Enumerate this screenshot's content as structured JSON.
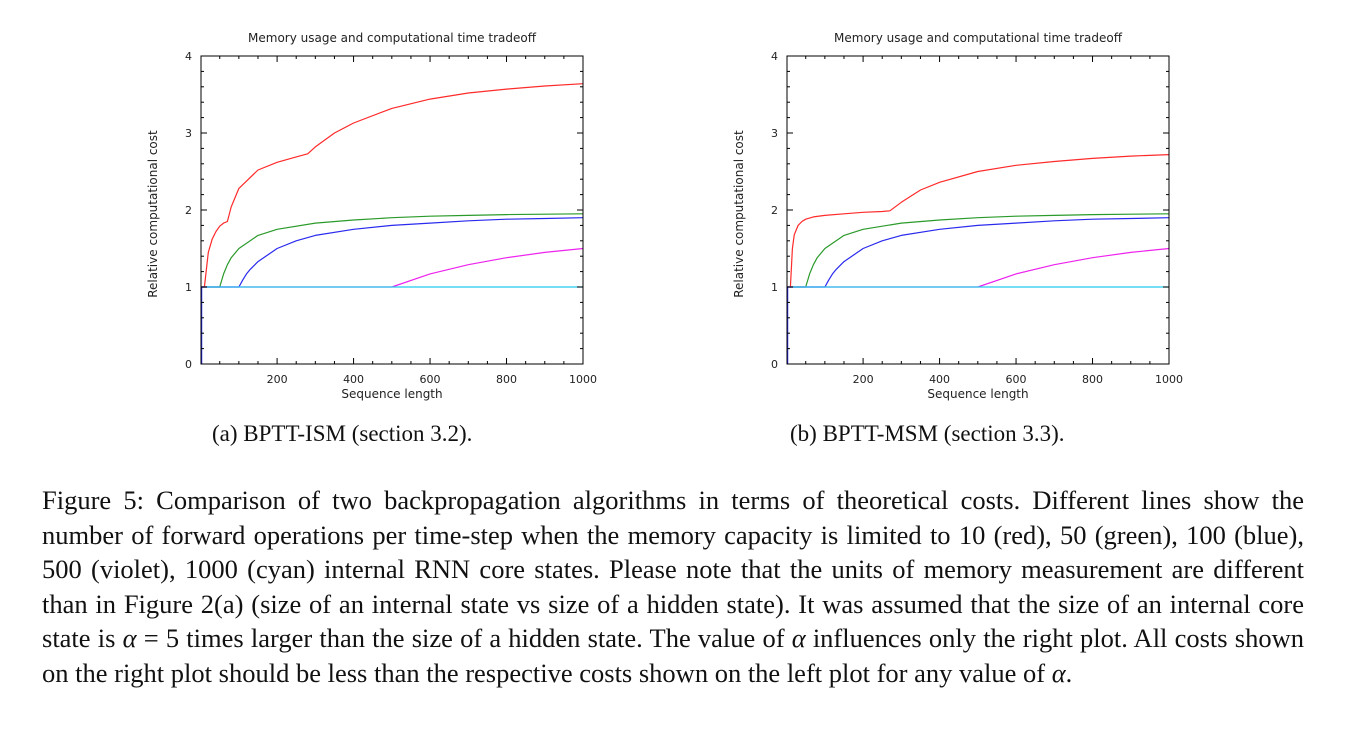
{
  "chart_data": [
    {
      "type": "line",
      "title": "Memory usage and computational time tradeoff",
      "xlabel": "Sequence length",
      "ylabel": "Relative computational cost",
      "xlim": [
        1,
        1000
      ],
      "ylim": [
        0,
        4
      ],
      "xticks": [
        200,
        400,
        600,
        800,
        1000
      ],
      "yticks": [
        0,
        1,
        2,
        3,
        4
      ],
      "grid": false,
      "series": [
        {
          "color": "#ff2a2a",
          "x": [
            1,
            10,
            20,
            30,
            40,
            50,
            60,
            70,
            80,
            100,
            150,
            200,
            250,
            280,
            300,
            350,
            400,
            500,
            600,
            700,
            800,
            900,
            1000
          ],
          "y": [
            1.0,
            1.0,
            1.45,
            1.62,
            1.72,
            1.79,
            1.83,
            1.85,
            2.04,
            2.28,
            2.52,
            2.62,
            2.69,
            2.73,
            2.82,
            3.0,
            3.13,
            3.32,
            3.44,
            3.52,
            3.57,
            3.61,
            3.64
          ]
        },
        {
          "color": "#2a9a2a",
          "x": [
            1,
            50,
            60,
            70,
            80,
            100,
            150,
            200,
            300,
            400,
            500,
            600,
            700,
            800,
            900,
            1000
          ],
          "y": [
            1.0,
            1.0,
            1.17,
            1.29,
            1.38,
            1.5,
            1.67,
            1.75,
            1.83,
            1.87,
            1.9,
            1.92,
            1.93,
            1.94,
            1.945,
            1.95
          ]
        },
        {
          "color": "#2a2aee",
          "x": [
            1,
            100,
            110,
            120,
            130,
            150,
            200,
            250,
            300,
            400,
            500,
            600,
            700,
            800,
            900,
            1000
          ],
          "y": [
            1.0,
            1.0,
            1.09,
            1.17,
            1.23,
            1.33,
            1.5,
            1.6,
            1.67,
            1.75,
            1.8,
            1.83,
            1.86,
            1.88,
            1.89,
            1.9
          ]
        },
        {
          "color": "#ee22ee",
          "x": [
            1,
            500,
            600,
            700,
            800,
            900,
            1000
          ],
          "y": [
            1.0,
            1.0,
            1.17,
            1.29,
            1.38,
            1.45,
            1.5
          ]
        },
        {
          "color": "#22ccee",
          "x": [
            1,
            1000
          ],
          "y": [
            1.0,
            1.0
          ]
        }
      ]
    },
    {
      "type": "line",
      "title": "Memory usage and computational time tradeoff",
      "xlabel": "Sequence length",
      "ylabel": "Relative computational cost",
      "xlim": [
        1,
        1000
      ],
      "ylim": [
        0,
        4
      ],
      "xticks": [
        200,
        400,
        600,
        800,
        1000
      ],
      "yticks": [
        0,
        1,
        2,
        3,
        4
      ],
      "grid": false,
      "series": [
        {
          "color": "#ff2a2a",
          "x": [
            1,
            10,
            15,
            20,
            30,
            40,
            50,
            70,
            100,
            150,
            200,
            250,
            270,
            300,
            350,
            400,
            500,
            600,
            700,
            800,
            900,
            1000
          ],
          "y": [
            1.0,
            1.0,
            1.5,
            1.68,
            1.8,
            1.85,
            1.88,
            1.91,
            1.93,
            1.95,
            1.97,
            1.98,
            1.99,
            2.1,
            2.26,
            2.36,
            2.5,
            2.58,
            2.63,
            2.67,
            2.7,
            2.72
          ]
        },
        {
          "color": "#2a9a2a",
          "x": [
            1,
            50,
            60,
            70,
            80,
            100,
            150,
            200,
            300,
            400,
            500,
            600,
            700,
            800,
            900,
            1000
          ],
          "y": [
            1.0,
            1.0,
            1.17,
            1.29,
            1.38,
            1.5,
            1.67,
            1.75,
            1.83,
            1.87,
            1.9,
            1.92,
            1.93,
            1.94,
            1.945,
            1.95
          ]
        },
        {
          "color": "#2a2aee",
          "x": [
            1,
            100,
            110,
            120,
            130,
            150,
            200,
            250,
            300,
            400,
            500,
            600,
            700,
            800,
            900,
            1000
          ],
          "y": [
            1.0,
            1.0,
            1.09,
            1.17,
            1.23,
            1.33,
            1.5,
            1.6,
            1.67,
            1.75,
            1.8,
            1.83,
            1.86,
            1.88,
            1.89,
            1.9
          ]
        },
        {
          "color": "#ee22ee",
          "x": [
            1,
            500,
            600,
            700,
            800,
            900,
            1000
          ],
          "y": [
            1.0,
            1.0,
            1.17,
            1.29,
            1.38,
            1.45,
            1.5
          ]
        },
        {
          "color": "#22ccee",
          "x": [
            1,
            1000
          ],
          "y": [
            1.0,
            1.0
          ]
        }
      ]
    }
  ],
  "subcaptions": {
    "a": "(a) BPTT-ISM (section 3.2).",
    "b": "(b) BPTT-MSM (section 3.3)."
  },
  "caption": {
    "text_1": "Figure 5: Comparison of two backpropagation algorithms in terms of theoretical costs. Different lines show the number of forward operations per time-step when the memory capacity is limited to 10 (red), 50 (green), 100 (blue), 500 (violet), 1000 (cyan) internal RNN core states. Please note that the units of memory measurement are different than in Figure 2(a) (size of an internal state vs size of a hidden state). It was assumed that the size of an internal core state is ",
    "alpha_1": "α",
    "eq": " = 5 times larger than the size of a hidden state. The value of ",
    "alpha_2": "α",
    "text_2": " influences only the right plot. All costs shown on the right plot should be less than the respective costs shown on the left plot for any value of ",
    "alpha_3": "α",
    "end": "."
  }
}
